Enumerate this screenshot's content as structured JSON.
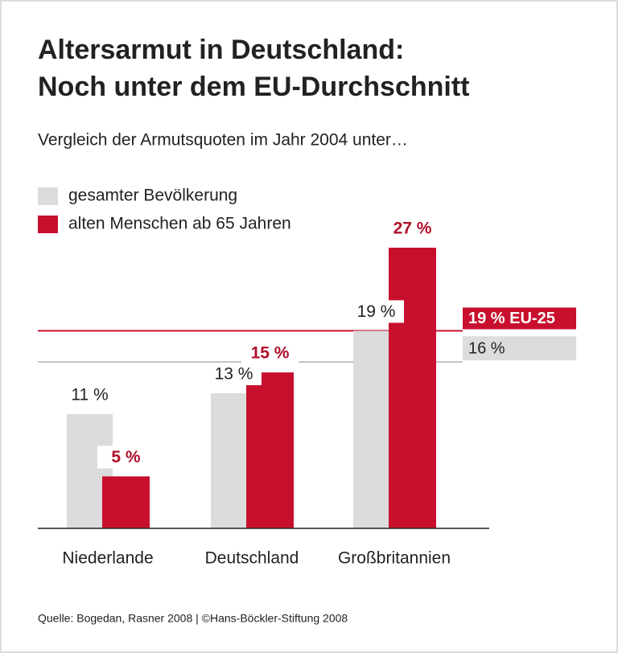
{
  "chart_data": {
    "type": "bar",
    "title": [
      "Altersarmut in Deutschland:",
      "Noch unter dem EU-Durchschnitt"
    ],
    "subtitle": "Vergleich der Armutsquoten im Jahr 2004 unter…",
    "categories": [
      "Niederlande",
      "Deutschland",
      "Großbritannien"
    ],
    "series": [
      {
        "name": "gesamter Bevölkerung",
        "color": "#dcdcdc",
        "values": [
          11,
          13,
          19
        ],
        "value_labels": [
          "11 %",
          "13 %",
          "19 %"
        ],
        "label_color": "#222222"
      },
      {
        "name": "alten Menschen ab 65 Jahren",
        "color": "#c8102e",
        "values": [
          5,
          15,
          27
        ],
        "value_labels": [
          "5 %",
          "15 %",
          "27 %"
        ],
        "label_color": "#b0102a"
      }
    ],
    "reference_lines": [
      {
        "value": 19,
        "label": "19 % EU-25",
        "color": "#c8102e",
        "text_color": "#ffffff"
      },
      {
        "value": 16,
        "label": "16 %",
        "color": "#c0c0c0",
        "box_color": "#dcdcdc",
        "text_color": "#222222"
      }
    ],
    "ylim": [
      0,
      27
    ],
    "source": "Quelle: Bogedan, Rasner 2008 | ©Hans-Böckler-Stiftung 2008"
  }
}
